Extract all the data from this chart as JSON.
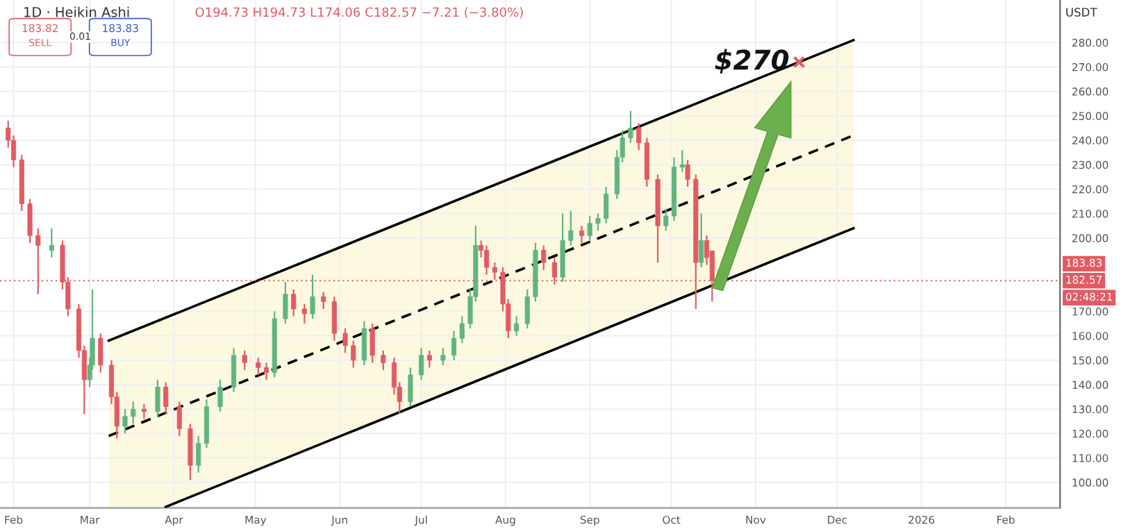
{
  "chart_data": {
    "type": "candlestick",
    "title": "1D · Heikin Ashi",
    "ylabel": "USDT",
    "x": [
      "2025-01-30",
      "2025-02-01",
      "2025-02-04",
      "2025-02-07",
      "2025-02-10",
      "2025-02-15",
      "2025-02-19",
      "2025-02-21",
      "2025-02-25",
      "2025-02-27",
      "2025-03-01",
      "2025-03-02",
      "2025-03-05",
      "2025-03-09",
      "2025-03-11",
      "2025-03-14",
      "2025-03-17",
      "2025-03-21",
      "2025-03-26",
      "2025-03-29",
      "2025-04-03",
      "2025-04-07",
      "2025-04-10",
      "2025-04-13",
      "2025-04-18",
      "2025-04-23",
      "2025-04-27",
      "2025-05-02",
      "2025-05-05",
      "2025-05-08",
      "2025-05-12",
      "2025-05-15",
      "2025-05-19",
      "2025-05-22",
      "2025-05-26",
      "2025-05-30",
      "2025-06-03",
      "2025-06-06",
      "2025-06-10",
      "2025-06-13",
      "2025-06-17",
      "2025-06-21",
      "2025-06-23",
      "2025-06-27",
      "2025-07-01",
      "2025-07-04",
      "2025-07-09",
      "2025-07-13",
      "2025-07-16",
      "2025-07-19",
      "2025-07-21",
      "2025-07-23",
      "2025-07-25",
      "2025-07-28",
      "2025-07-31",
      "2025-08-02",
      "2025-08-05",
      "2025-08-09",
      "2025-08-12",
      "2025-08-15",
      "2025-08-19",
      "2025-08-22",
      "2025-08-25",
      "2025-08-29",
      "2025-09-01",
      "2025-09-04",
      "2025-09-07",
      "2025-09-11",
      "2025-09-13",
      "2025-09-16",
      "2025-09-19",
      "2025-09-22",
      "2025-09-26",
      "2025-09-29",
      "2025-10-02",
      "2025-10-05",
      "2025-10-07",
      "2025-10-10",
      "2025-10-12",
      "2025-10-14",
      "2025-10-16"
    ],
    "ohlc": [
      [
        245,
        248,
        237,
        240
      ],
      [
        240,
        242,
        229,
        232
      ],
      [
        232,
        234,
        211,
        214
      ],
      [
        214,
        216,
        198,
        201
      ],
      [
        201,
        204,
        177,
        197
      ],
      [
        195,
        204,
        192,
        197
      ],
      [
        197,
        199,
        179,
        182
      ],
      [
        182,
        184,
        168,
        171
      ],
      [
        171,
        173,
        151,
        154
      ],
      [
        154,
        156,
        128,
        142
      ],
      [
        142,
        151,
        139,
        148
      ],
      [
        148,
        179,
        146,
        159
      ],
      [
        159,
        161,
        145,
        148
      ],
      [
        148,
        150,
        132,
        135
      ],
      [
        135,
        137,
        118,
        123
      ],
      [
        123,
        130,
        120,
        127
      ],
      [
        127,
        133,
        124,
        130
      ],
      [
        130,
        132,
        126,
        129
      ],
      [
        129,
        142,
        127,
        139
      ],
      [
        139,
        141,
        128,
        131
      ],
      [
        131,
        133,
        119,
        122
      ],
      [
        122,
        124,
        101,
        107
      ],
      [
        107,
        119,
        104,
        116
      ],
      [
        116,
        134,
        114,
        131
      ],
      [
        131,
        142,
        129,
        139
      ],
      [
        139,
        155,
        137,
        152
      ],
      [
        152,
        154,
        146,
        149
      ],
      [
        149,
        151,
        144,
        147
      ],
      [
        147,
        149,
        142,
        145
      ],
      [
        145,
        170,
        143,
        167
      ],
      [
        167,
        182,
        165,
        177
      ],
      [
        177,
        179,
        168,
        171
      ],
      [
        171,
        173,
        165,
        169
      ],
      [
        169,
        185,
        167,
        176
      ],
      [
        176,
        178,
        171,
        174
      ],
      [
        174,
        176,
        158,
        161
      ],
      [
        161,
        163,
        153,
        156
      ],
      [
        156,
        158,
        147,
        150
      ],
      [
        150,
        166,
        148,
        163
      ],
      [
        163,
        165,
        149,
        152
      ],
      [
        152,
        154,
        146,
        149
      ],
      [
        149,
        151,
        136,
        139
      ],
      [
        139,
        141,
        128,
        133
      ],
      [
        133,
        147,
        131,
        144
      ],
      [
        144,
        155,
        142,
        152
      ],
      [
        152,
        154,
        147,
        150
      ],
      [
        150,
        155,
        148,
        152
      ],
      [
        152,
        162,
        150,
        159
      ],
      [
        159,
        168,
        157,
        165
      ],
      [
        165,
        179,
        163,
        176
      ],
      [
        176,
        205,
        174,
        197
      ],
      [
        197,
        199,
        192,
        195
      ],
      [
        195,
        197,
        185,
        188
      ],
      [
        188,
        190,
        183,
        186
      ],
      [
        186,
        188,
        170,
        173
      ],
      [
        173,
        175,
        159,
        162
      ],
      [
        162,
        168,
        160,
        165
      ],
      [
        165,
        179,
        163,
        176
      ],
      [
        176,
        198,
        174,
        195
      ],
      [
        195,
        197,
        187,
        190
      ],
      [
        190,
        192,
        181,
        184
      ],
      [
        184,
        210,
        182,
        199
      ],
      [
        199,
        211,
        197,
        203
      ],
      [
        203,
        205,
        198,
        201
      ],
      [
        201,
        209,
        199,
        206
      ],
      [
        206,
        210,
        203,
        208
      ],
      [
        208,
        221,
        206,
        218
      ],
      [
        218,
        236,
        216,
        233
      ],
      [
        233,
        244,
        231,
        241
      ],
      [
        241,
        252,
        239,
        245
      ],
      [
        245,
        247,
        236,
        239
      ],
      [
        239,
        241,
        221,
        224
      ],
      [
        224,
        226,
        190,
        205
      ],
      [
        205,
        212,
        203,
        209
      ],
      [
        209,
        233,
        207,
        229
      ],
      [
        229,
        236,
        227,
        230
      ],
      [
        230,
        232,
        221,
        224
      ],
      [
        224,
        226,
        171,
        190
      ],
      [
        190,
        210,
        188,
        199
      ],
      [
        199,
        201,
        189,
        192
      ],
      [
        194.73,
        194.73,
        174.06,
        182.57
      ]
    ],
    "colors": [
      "#e25b63",
      "#e25b63",
      "#e25b63",
      "#e25b63",
      "#e25b63",
      "#60b57f",
      "#e25b63",
      "#e25b63",
      "#e25b63",
      "#e25b63",
      "#60b57f",
      "#60b57f",
      "#e25b63",
      "#e25b63",
      "#e25b63",
      "#60b57f",
      "#60b57f",
      "#e25b63",
      "#60b57f",
      "#e25b63",
      "#e25b63",
      "#e25b63",
      "#60b57f",
      "#60b57f",
      "#60b57f",
      "#60b57f",
      "#e25b63",
      "#e25b63",
      "#e25b63",
      "#60b57f",
      "#60b57f",
      "#e25b63",
      "#e25b63",
      "#60b57f",
      "#e25b63",
      "#e25b63",
      "#e25b63",
      "#e25b63",
      "#60b57f",
      "#e25b63",
      "#e25b63",
      "#e25b63",
      "#e25b63",
      "#60b57f",
      "#60b57f",
      "#e25b63",
      "#60b57f",
      "#60b57f",
      "#60b57f",
      "#60b57f",
      "#60b57f",
      "#e25b63",
      "#e25b63",
      "#e25b63",
      "#e25b63",
      "#e25b63",
      "#60b57f",
      "#60b57f",
      "#60b57f",
      "#e25b63",
      "#e25b63",
      "#60b57f",
      "#60b57f",
      "#e25b63",
      "#60b57f",
      "#60b57f",
      "#60b57f",
      "#60b57f",
      "#60b57f",
      "#60b57f",
      "#e25b63",
      "#e25b63",
      "#e25b63",
      "#60b57f",
      "#60b57f",
      "#60b57f",
      "#e25b63",
      "#e25b63",
      "#60b57f",
      "#e25b63",
      "#e25b63"
    ],
    "series": [
      {
        "type": "line",
        "color": "#000000",
        "x": [
          "2025-03-08",
          "2025-12-07"
        ],
        "values": [
          158,
          281
        ],
        "line_style": "solid"
      },
      {
        "type": "line",
        "color": "#000000",
        "x": [
          "2025-03-08",
          "2025-03-29",
          "2025-12-07"
        ],
        "values": [
          119,
          128.5,
          242
        ],
        "lower": [
          89.6,
          90,
          204
        ],
        "upper": [
          158,
          167.4,
          281
        ],
        "line_style": "dashed"
      },
      {
        "type": "line",
        "color": "#000000",
        "x": [
          "2025-03-29",
          "2025-12-07"
        ],
        "values": [
          90,
          204
        ],
        "line_style": "solid"
      }
    ],
    "ref_lines": [
      {
        "axis": "y",
        "value": 182.57,
        "label": "182.57",
        "color": "#e25b63",
        "line_style": "dotted"
      }
    ],
    "annotations": [
      {
        "text": "$270",
        "x": "2025-11-17",
        "y": 272
      },
      "O194.73 H194.73 L174.06 C182.57 −7.21 (−3.80%)",
      "183.82",
      "SELL",
      "0.01",
      "183.83",
      "BUY",
      "183.83",
      "02:48:21"
    ],
    "xlim": [
      "2025-01-27",
      "2026-02-21"
    ],
    "xticks": [
      {
        "value": "2025-02-01",
        "label": "Feb"
      },
      {
        "value": "2025-03-01",
        "label": "Mar"
      },
      {
        "value": "2025-04-01",
        "label": "Apr"
      },
      {
        "value": "2025-05-01",
        "label": "May"
      },
      {
        "value": "2025-06-01",
        "label": "Jun"
      },
      {
        "value": "2025-07-01",
        "label": "Jul"
      },
      {
        "value": "2025-08-01",
        "label": "Aug"
      },
      {
        "value": "2025-09-01",
        "label": "Sep"
      },
      {
        "value": "2025-10-01",
        "label": "Oct"
      },
      {
        "value": "2025-11-01",
        "label": "Nov"
      },
      {
        "value": "2025-12-01",
        "label": "Dec"
      },
      {
        "value": "2026-01-01",
        "label": "2026"
      },
      {
        "value": "2026-02-01",
        "label": "Feb"
      }
    ],
    "ylim": [
      89.6,
      297.4
    ],
    "yticks": [
      {
        "value": 100,
        "label": "100.00"
      },
      {
        "value": 110,
        "label": "110.00"
      },
      {
        "value": 120,
        "label": "120.00"
      },
      {
        "value": 130,
        "label": "130.00"
      },
      {
        "value": 140,
        "label": "140.00"
      },
      {
        "value": 150,
        "label": "150.00"
      },
      {
        "value": 160,
        "label": "160.00"
      },
      {
        "value": 170,
        "label": "170.00"
      },
      {
        "value": 200,
        "label": "200.00"
      },
      {
        "value": 210,
        "label": "210.00"
      },
      {
        "value": 220,
        "label": "220.00"
      },
      {
        "value": 230,
        "label": "230.00"
      },
      {
        "value": 240,
        "label": "240.00"
      },
      {
        "value": 250,
        "label": "250.00"
      },
      {
        "value": 260,
        "label": "260.00"
      },
      {
        "value": 270,
        "label": "270.00"
      },
      {
        "value": 280,
        "label": "280.00"
      }
    ],
    "grid": true
  }
}
